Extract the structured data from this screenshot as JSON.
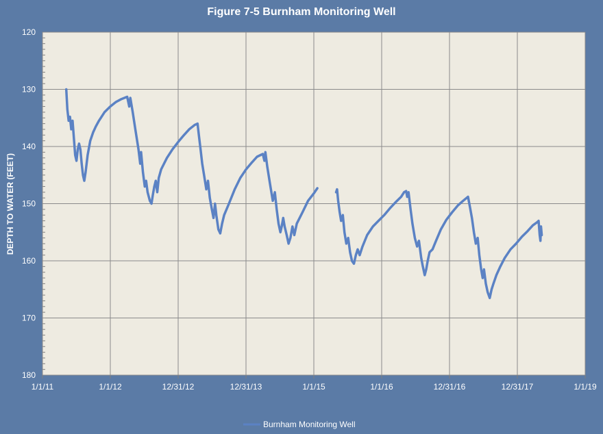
{
  "chart_data": {
    "type": "line",
    "title": "Figure 7-5 Burnham Monitoring Well",
    "xlabel": "",
    "ylabel": "DEPTH TO WATER (FEET)",
    "x_ticks": [
      "1/1/11",
      "1/1/12",
      "12/31/12",
      "12/31/13",
      "1/1/15",
      "1/1/16",
      "12/31/16",
      "12/31/17",
      "1/1/19"
    ],
    "ylim": [
      120,
      180
    ],
    "y_inverted": true,
    "y_ticks": [
      120,
      130,
      140,
      150,
      160,
      170,
      180
    ],
    "grid": true,
    "legend_position": "bottom",
    "colors": {
      "background": "#5b7ba6",
      "plot_area": "#eeebe1",
      "series": "#5b82c4",
      "grid": "#8a8a8a"
    },
    "series": [
      {
        "name": "Burnham Monitoring Well",
        "segments": [
          [
            [
              "2011-05-09",
              130.0
            ],
            [
              "2011-05-15",
              133.5
            ],
            [
              "2011-05-22",
              135.5
            ],
            [
              "2011-05-29",
              134.8
            ],
            [
              "2011-06-05",
              137.0
            ],
            [
              "2011-06-12",
              135.5
            ],
            [
              "2011-06-19",
              138.5
            ],
            [
              "2011-06-26",
              141.5
            ],
            [
              "2011-07-03",
              142.5
            ],
            [
              "2011-07-10",
              140.5
            ],
            [
              "2011-07-17",
              139.5
            ],
            [
              "2011-07-24",
              140.5
            ],
            [
              "2011-07-31",
              143.0
            ],
            [
              "2011-08-07",
              145.0
            ],
            [
              "2011-08-14",
              146.0
            ],
            [
              "2011-08-21",
              144.5
            ],
            [
              "2011-09-01",
              141.5
            ],
            [
              "2011-09-15",
              139.0
            ],
            [
              "2011-10-01",
              137.5
            ],
            [
              "2011-10-15",
              136.5
            ],
            [
              "2011-11-01",
              135.5
            ],
            [
              "2011-12-01",
              134.0
            ],
            [
              "2012-01-01",
              133.0
            ],
            [
              "2012-02-01",
              132.2
            ],
            [
              "2012-03-01",
              131.7
            ],
            [
              "2012-04-01",
              131.3
            ],
            [
              "2012-04-12",
              133.0
            ],
            [
              "2012-04-18",
              131.5
            ],
            [
              "2012-05-01",
              134.0
            ],
            [
              "2012-05-15",
              137.0
            ],
            [
              "2012-06-01",
              140.5
            ],
            [
              "2012-06-10",
              143.0
            ],
            [
              "2012-06-15",
              141.0
            ],
            [
              "2012-06-25",
              144.5
            ],
            [
              "2012-07-05",
              147.0
            ],
            [
              "2012-07-12",
              146.0
            ],
            [
              "2012-07-20",
              148.0
            ],
            [
              "2012-08-01",
              149.5
            ],
            [
              "2012-08-10",
              150.0
            ],
            [
              "2012-08-17",
              148.5
            ],
            [
              "2012-08-25",
              147.0
            ],
            [
              "2012-09-02",
              146.0
            ],
            [
              "2012-09-10",
              148.0
            ],
            [
              "2012-09-18",
              145.5
            ],
            [
              "2012-10-01",
              144.0
            ],
            [
              "2012-11-01",
              142.0
            ],
            [
              "2012-12-01",
              140.5
            ],
            [
              "2013-01-01",
              139.2
            ],
            [
              "2013-02-01",
              138.0
            ],
            [
              "2013-03-01",
              137.0
            ],
            [
              "2013-04-01",
              136.2
            ],
            [
              "2013-04-15",
              136.0
            ],
            [
              "2013-04-22",
              138.0
            ],
            [
              "2013-05-01",
              140.5
            ],
            [
              "2013-05-10",
              143.0
            ],
            [
              "2013-05-20",
              145.0
            ],
            [
              "2013-06-01",
              147.5
            ],
            [
              "2013-06-10",
              146.0
            ],
            [
              "2013-06-20",
              149.0
            ],
            [
              "2013-07-01",
              151.0
            ],
            [
              "2013-07-10",
              152.5
            ],
            [
              "2013-07-18",
              150.0
            ],
            [
              "2013-07-25",
              152.0
            ],
            [
              "2013-08-05",
              154.5
            ],
            [
              "2013-08-15",
              155.2
            ],
            [
              "2013-08-25",
              153.5
            ],
            [
              "2013-09-05",
              152.0
            ],
            [
              "2013-10-01",
              150.0
            ],
            [
              "2013-11-01",
              147.5
            ],
            [
              "2013-12-01",
              145.5
            ],
            [
              "2014-01-01",
              144.0
            ],
            [
              "2014-02-01",
              142.8
            ],
            [
              "2014-03-01",
              141.8
            ],
            [
              "2014-04-01",
              141.3
            ],
            [
              "2014-04-10",
              142.5
            ],
            [
              "2014-04-15",
              141.0
            ],
            [
              "2014-04-25",
              143.5
            ],
            [
              "2014-05-10",
              146.5
            ],
            [
              "2014-05-25",
              149.5
            ],
            [
              "2014-06-05",
              148.0
            ],
            [
              "2014-06-15",
              151.0
            ],
            [
              "2014-06-25",
              153.5
            ],
            [
              "2014-07-05",
              155.0
            ],
            [
              "2014-07-12",
              154.0
            ],
            [
              "2014-07-20",
              152.5
            ],
            [
              "2014-07-28",
              154.0
            ],
            [
              "2014-08-08",
              155.5
            ],
            [
              "2014-08-18",
              157.0
            ],
            [
              "2014-08-28",
              156.0
            ],
            [
              "2014-09-08",
              154.0
            ],
            [
              "2014-09-18",
              155.5
            ],
            [
              "2014-10-01",
              153.5
            ],
            [
              "2014-11-01",
              151.5
            ],
            [
              "2014-12-01",
              149.5
            ],
            [
              "2015-01-01",
              148.2
            ],
            [
              "2015-01-20",
              147.3
            ]
          ],
          [
            [
              "2015-05-01",
              148.0
            ],
            [
              "2015-05-06",
              147.5
            ],
            [
              "2015-05-12",
              149.5
            ],
            [
              "2015-05-20",
              151.5
            ],
            [
              "2015-05-28",
              153.0
            ],
            [
              "2015-06-06",
              152.0
            ],
            [
              "2015-06-15",
              155.0
            ],
            [
              "2015-06-25",
              157.0
            ],
            [
              "2015-07-05",
              156.0
            ],
            [
              "2015-07-15",
              158.5
            ],
            [
              "2015-07-25",
              160.0
            ],
            [
              "2015-08-05",
              160.5
            ],
            [
              "2015-08-15",
              159.0
            ],
            [
              "2015-08-25",
              158.0
            ],
            [
              "2015-09-05",
              159.0
            ],
            [
              "2015-09-20",
              157.5
            ],
            [
              "2015-10-15",
              155.5
            ],
            [
              "2015-11-15",
              154.0
            ],
            [
              "2015-12-15",
              153.0
            ],
            [
              "2016-01-15",
              152.0
            ],
            [
              "2016-02-15",
              150.8
            ],
            [
              "2016-03-15",
              149.8
            ],
            [
              "2016-04-15",
              148.8
            ],
            [
              "2016-05-01",
              148.0
            ],
            [
              "2016-05-12",
              147.8
            ],
            [
              "2016-05-18",
              148.8
            ],
            [
              "2016-05-25",
              148.0
            ],
            [
              "2016-06-05",
              151.0
            ],
            [
              "2016-06-15",
              153.5
            ],
            [
              "2016-06-28",
              156.0
            ],
            [
              "2016-07-10",
              157.5
            ],
            [
              "2016-07-20",
              156.5
            ],
            [
              "2016-08-01",
              159.5
            ],
            [
              "2016-08-10",
              161.0
            ],
            [
              "2016-08-20",
              162.5
            ],
            [
              "2016-08-28",
              161.5
            ],
            [
              "2016-09-05",
              160.0
            ],
            [
              "2016-09-15",
              158.5
            ],
            [
              "2016-10-01",
              158.0
            ],
            [
              "2016-10-20",
              156.5
            ],
            [
              "2016-11-15",
              154.5
            ],
            [
              "2016-12-15",
              152.8
            ],
            [
              "2017-01-15",
              151.5
            ],
            [
              "2017-02-15",
              150.3
            ],
            [
              "2017-03-15",
              149.5
            ],
            [
              "2017-04-10",
              148.8
            ],
            [
              "2017-04-20",
              150.5
            ],
            [
              "2017-05-01",
              152.5
            ],
            [
              "2017-05-12",
              155.0
            ],
            [
              "2017-05-22",
              157.0
            ],
            [
              "2017-06-01",
              156.0
            ],
            [
              "2017-06-10",
              159.0
            ],
            [
              "2017-06-20",
              161.5
            ],
            [
              "2017-06-28",
              163.0
            ],
            [
              "2017-07-05",
              161.5
            ],
            [
              "2017-07-15",
              164.0
            ],
            [
              "2017-07-25",
              165.5
            ],
            [
              "2017-08-05",
              166.5
            ],
            [
              "2017-08-15",
              165.0
            ],
            [
              "2017-08-25",
              164.0
            ],
            [
              "2017-09-10",
              162.5
            ],
            [
              "2017-10-01",
              161.0
            ],
            [
              "2017-10-25",
              159.5
            ],
            [
              "2017-11-25",
              158.0
            ],
            [
              "2017-12-25",
              157.0
            ],
            [
              "2018-01-25",
              155.8
            ],
            [
              "2018-02-25",
              154.8
            ],
            [
              "2018-03-25",
              153.8
            ],
            [
              "2018-04-15",
              153.3
            ],
            [
              "2018-04-25",
              153.0
            ],
            [
              "2018-05-01",
              155.5
            ],
            [
              "2018-05-05",
              156.5
            ],
            [
              "2018-05-08",
              154.0
            ],
            [
              "2018-05-12",
              155.5
            ]
          ]
        ]
      }
    ]
  }
}
